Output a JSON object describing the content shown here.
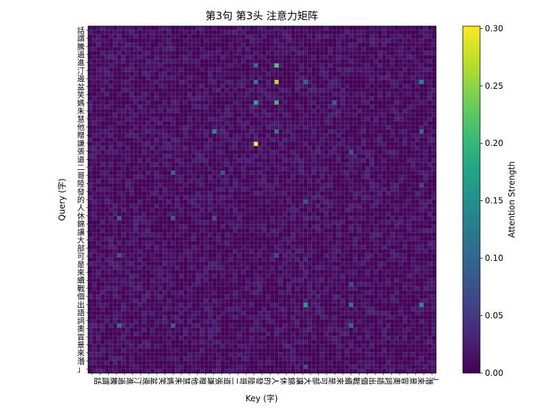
{
  "chart_data": {
    "type": "heatmap",
    "title": "第3句 第3头 注意力矩阵",
    "xlabel": "Key (字)",
    "ylabel": "Query (字)",
    "colorbar": {
      "label": "Attention Strength",
      "ticks": [
        0.0,
        0.05,
        0.1,
        0.15,
        0.2,
        0.25,
        0.3
      ],
      "vmin": 0.0,
      "vmax": 0.302,
      "colormap": "viridis"
    },
    "grid_size": 84,
    "cell_value_baseline": 0.0,
    "cell_value_typical_max": 0.03,
    "hotspots": [
      {
        "row": 28,
        "col": 40,
        "value": 0.3
      },
      {
        "row": 13,
        "col": 45,
        "value": 0.27
      },
      {
        "row": 9,
        "col": 45,
        "value": 0.22
      },
      {
        "row": 18,
        "col": 45,
        "value": 0.2
      },
      {
        "row": 18,
        "col": 40,
        "value": 0.18
      },
      {
        "row": 13,
        "col": 40,
        "value": 0.12
      },
      {
        "row": 9,
        "col": 40,
        "value": 0.1
      },
      {
        "row": 25,
        "col": 30,
        "value": 0.14
      },
      {
        "row": 25,
        "col": 45,
        "value": 0.12
      },
      {
        "row": 35,
        "col": 32,
        "value": 0.08
      },
      {
        "row": 35,
        "col": 20,
        "value": 0.09
      },
      {
        "row": 46,
        "col": 30,
        "value": 0.07
      },
      {
        "row": 46,
        "col": 20,
        "value": 0.08
      },
      {
        "row": 46,
        "col": 7,
        "value": 0.09
      },
      {
        "row": 55,
        "col": 45,
        "value": 0.07
      },
      {
        "row": 55,
        "col": 7,
        "value": 0.08
      },
      {
        "row": 67,
        "col": 52,
        "value": 0.16
      },
      {
        "row": 67,
        "col": 63,
        "value": 0.12
      },
      {
        "row": 67,
        "col": 80,
        "value": 0.14
      },
      {
        "row": 72,
        "col": 7,
        "value": 0.11
      },
      {
        "row": 72,
        "col": 20,
        "value": 0.09
      },
      {
        "row": 72,
        "col": 63,
        "value": 0.1
      },
      {
        "row": 18,
        "col": 59,
        "value": 0.09
      },
      {
        "row": 13,
        "col": 52,
        "value": 0.09
      },
      {
        "row": 13,
        "col": 80,
        "value": 0.13
      },
      {
        "row": 25,
        "col": 80,
        "value": 0.1
      },
      {
        "row": 42,
        "col": 52,
        "value": 0.08
      },
      {
        "row": 62,
        "col": 63,
        "value": 0.07
      },
      {
        "row": 30,
        "col": 63,
        "value": 0.08
      },
      {
        "row": 38,
        "col": 80,
        "value": 0.06
      },
      {
        "row": 82,
        "col": 52,
        "value": 0.07
      }
    ],
    "y_tick_labels": [
      "話",
      "謂",
      "騰",
      "過",
      "進",
      "汀",
      "邊",
      "盆",
      "笑",
      "媽",
      "朱",
      "慧",
      "他",
      "贈",
      "謙",
      "張",
      "道",
      "二",
      "哥",
      "陸",
      "發",
      "的",
      "人",
      "休",
      "錦",
      "讓",
      "大",
      "部",
      "可",
      "是",
      "來",
      "續",
      "戰",
      "個",
      "出",
      "語",
      "詞",
      "奧",
      "冒",
      "景",
      "來",
      "潛",
      "」"
    ],
    "x_tick_labels": [
      "話",
      "謂",
      "騰",
      "過",
      "進",
      "汀",
      "邊",
      "盆",
      "笑",
      "媽",
      "朱",
      "慧",
      "他",
      "贈",
      "謙",
      "張",
      "道",
      "二",
      "哥",
      "陸",
      "發",
      "的",
      "人",
      "休",
      "錦",
      "讓",
      "大",
      "部",
      "可",
      "是",
      "來",
      "續",
      "戰",
      "個",
      "出",
      "語",
      "詞",
      "奧",
      "冒",
      "景",
      "來",
      "潛",
      "」"
    ]
  }
}
